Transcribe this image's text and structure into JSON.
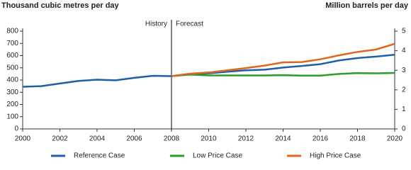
{
  "chart_data": {
    "type": "line",
    "ylabel": "Thousand cubic metres per day",
    "y2label": "Million barrels per day",
    "x": [
      2000,
      2001,
      2002,
      2003,
      2004,
      2005,
      2006,
      2007,
      2008,
      2009,
      2010,
      2011,
      2012,
      2013,
      2014,
      2015,
      2016,
      2017,
      2018,
      2019,
      2020
    ],
    "series": [
      {
        "name": "Reference Case",
        "color": "#1f5fa8",
        "values": [
          345,
          350,
          372,
          393,
          403,
          398,
          418,
          435,
          432,
          450,
          455,
          468,
          480,
          485,
          502,
          515,
          530,
          560,
          580,
          592,
          607
        ]
      },
      {
        "name": "Low Price Case",
        "color": "#2a9d2a",
        "values": [
          null,
          null,
          null,
          null,
          null,
          null,
          null,
          null,
          432,
          445,
          438,
          438,
          438,
          438,
          440,
          436,
          436,
          450,
          457,
          455,
          458
        ]
      },
      {
        "name": "High Price Case",
        "color": "#e0651f",
        "values": [
          null,
          null,
          null,
          null,
          null,
          null,
          null,
          null,
          432,
          452,
          462,
          480,
          498,
          518,
          545,
          547,
          570,
          602,
          630,
          650,
          697
        ]
      }
    ],
    "xlim": [
      2000,
      2020
    ],
    "xticks": [
      2000,
      2002,
      2004,
      2006,
      2008,
      2010,
      2012,
      2014,
      2016,
      2018,
      2020
    ],
    "ylim": [
      0,
      800
    ],
    "yticks": [
      0,
      100,
      200,
      300,
      400,
      500,
      600,
      700,
      800
    ],
    "y2lim": [
      0,
      5
    ],
    "y2ticks": [
      0,
      1,
      2,
      3,
      4,
      5
    ],
    "divider": 2008,
    "annotations": [
      "History",
      "Forecast"
    ]
  }
}
